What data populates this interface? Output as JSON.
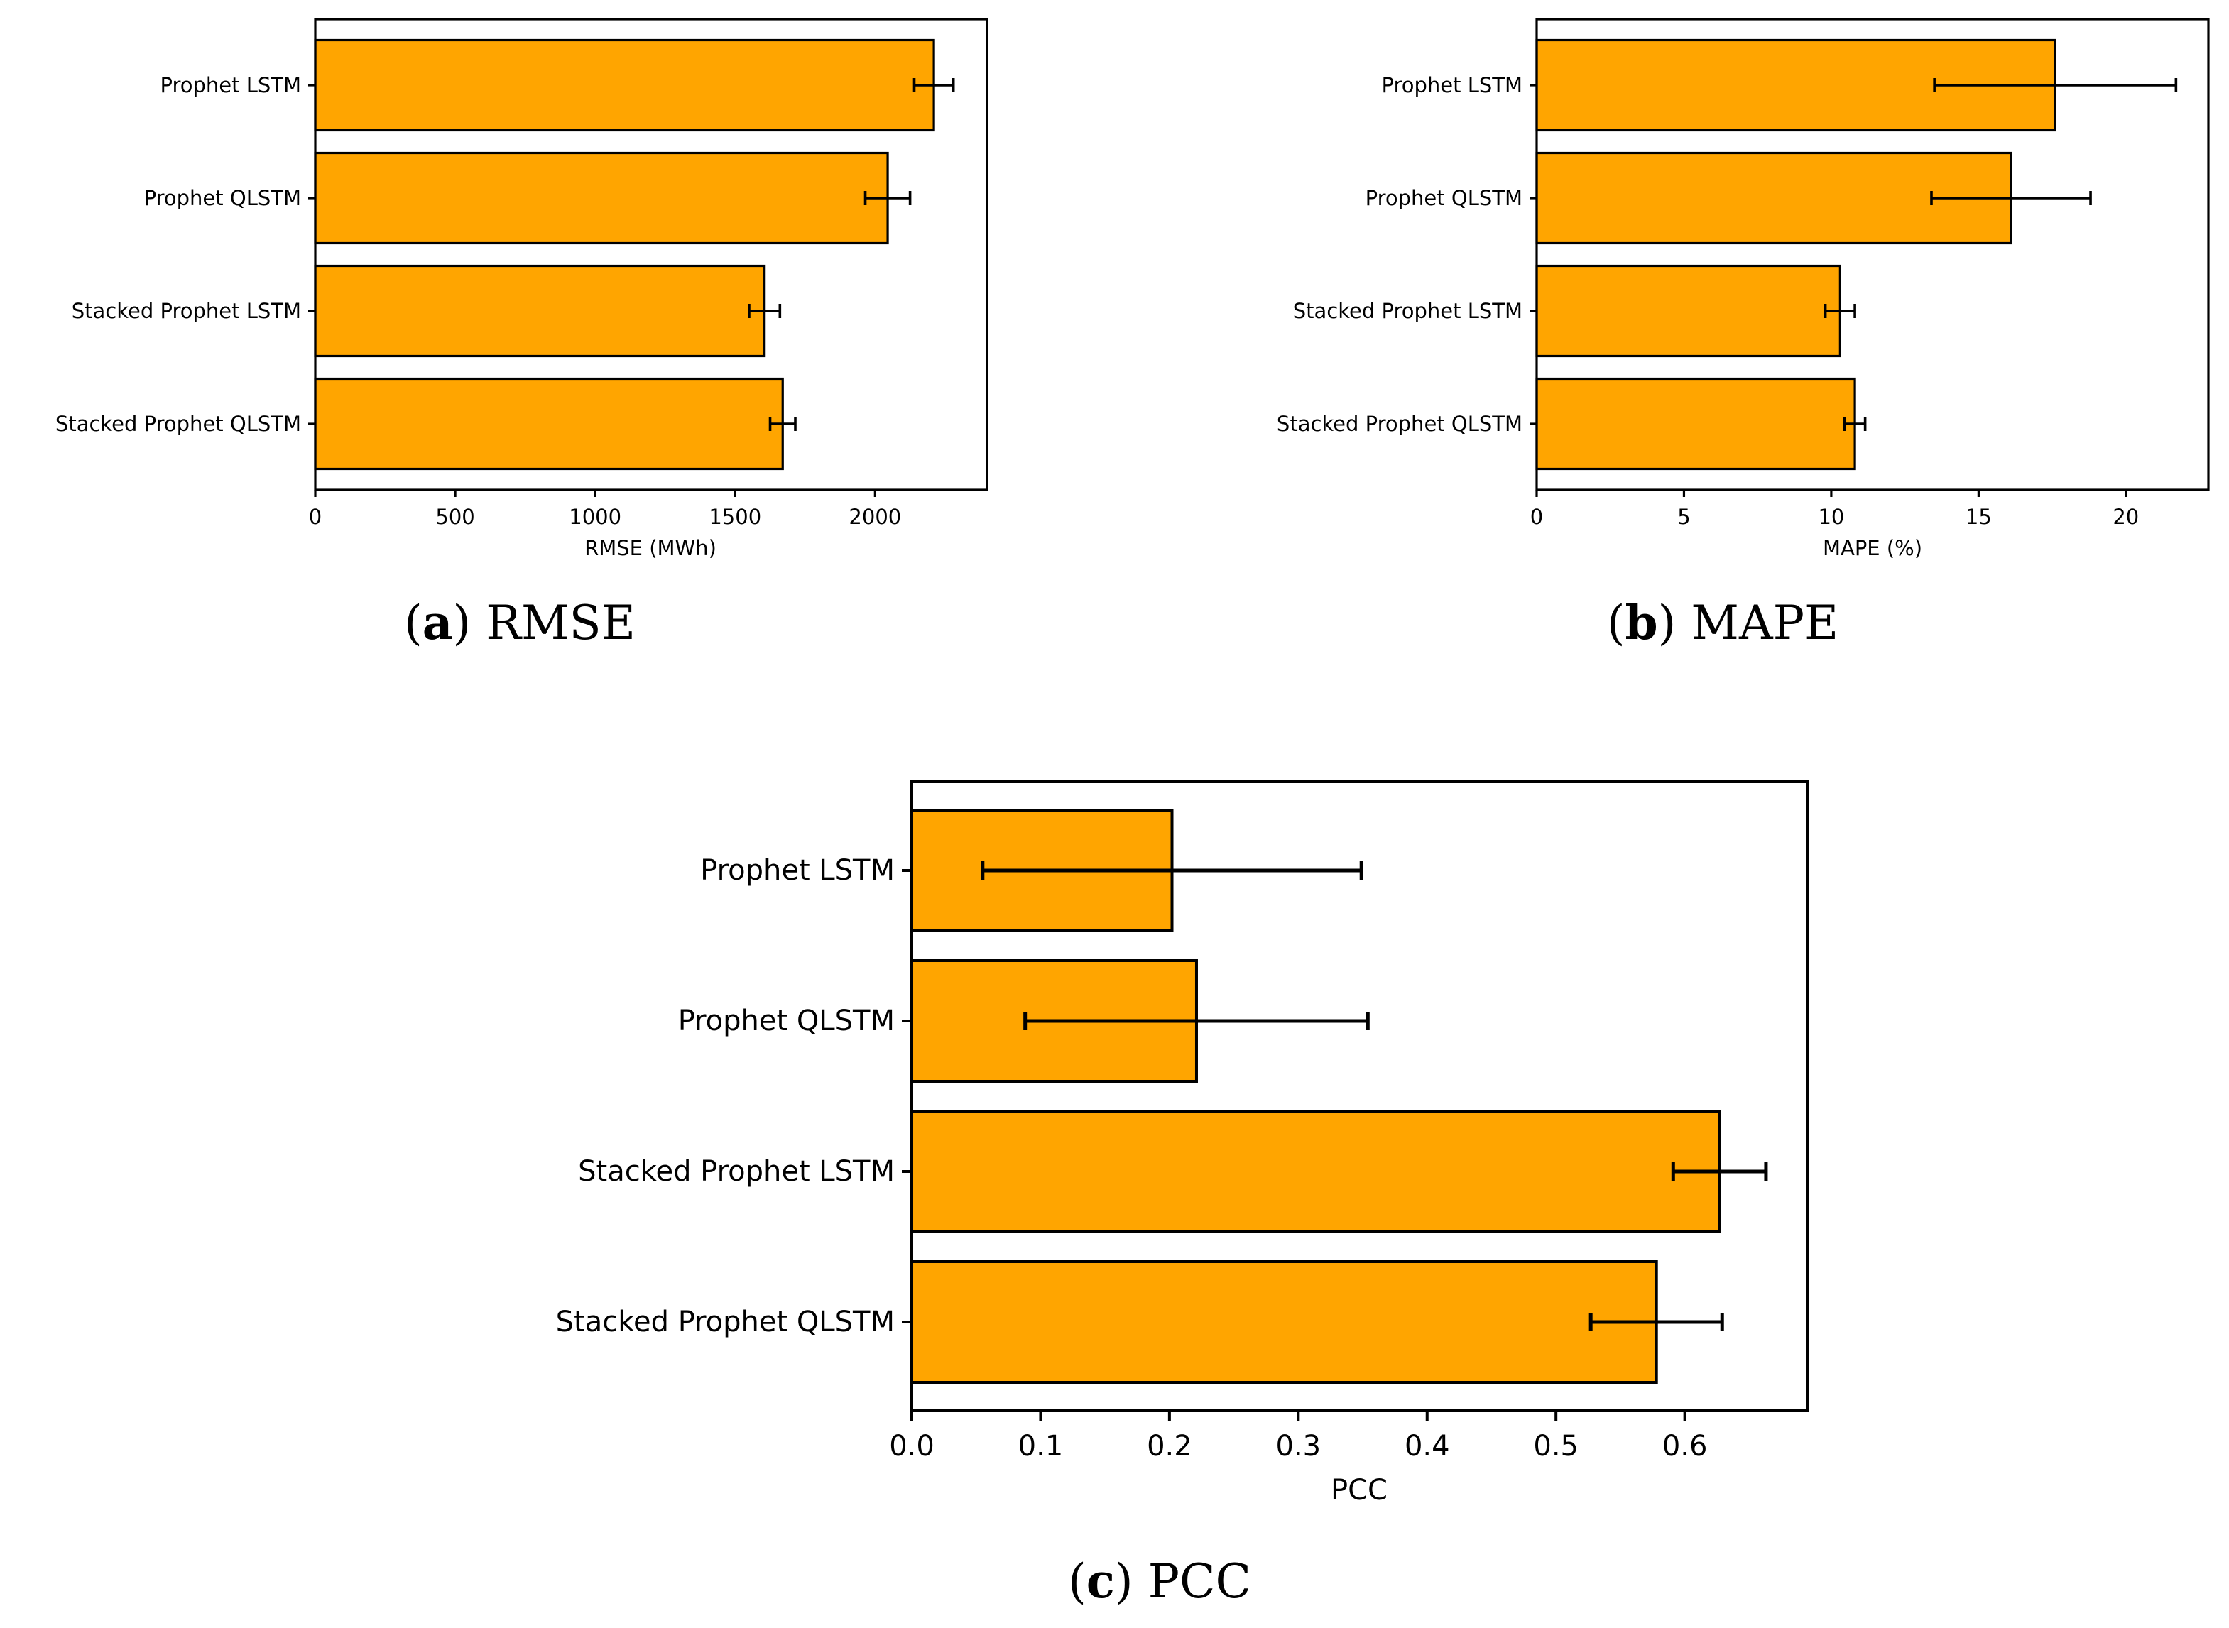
{
  "figure": {
    "panels": [
      {
        "caption_letter": "a",
        "caption_text": "RMSE"
      },
      {
        "caption_letter": "b",
        "caption_text": "MAPE"
      },
      {
        "caption_letter": "c",
        "caption_text": "PCC"
      }
    ]
  },
  "chart_data": [
    {
      "type": "bar",
      "orientation": "horizontal",
      "title": "",
      "xlabel": "RMSE (MWh)",
      "ylabel": "",
      "categories": [
        "Prophet LSTM",
        "Prophet QLSTM",
        "Stacked Prophet LSTM",
        "Stacked Prophet QLSTM"
      ],
      "values": [
        2210,
        2045,
        1605,
        1670
      ],
      "error": [
        70,
        80,
        55,
        45
      ],
      "xlim": [
        0,
        2400
      ],
      "xticks": [
        0,
        500,
        1000,
        1500,
        2000
      ],
      "xtick_labels": [
        "0",
        "500",
        "1000",
        "1500",
        "2000"
      ],
      "bar_color": "#ffa500",
      "grid": false
    },
    {
      "type": "bar",
      "orientation": "horizontal",
      "title": "",
      "xlabel": "MAPE (%)",
      "ylabel": "",
      "categories": [
        "Prophet LSTM",
        "Prophet QLSTM",
        "Stacked Prophet LSTM",
        "Stacked Prophet QLSTM"
      ],
      "values": [
        17.6,
        16.1,
        10.3,
        10.8
      ],
      "error": [
        4.1,
        2.7,
        0.5,
        0.35
      ],
      "xlim": [
        0,
        22.8
      ],
      "xticks": [
        0,
        5,
        10,
        15,
        20
      ],
      "xtick_labels": [
        "0",
        "5",
        "10",
        "15",
        "20"
      ],
      "bar_color": "#ffa500",
      "grid": false
    },
    {
      "type": "bar",
      "orientation": "horizontal",
      "title": "",
      "xlabel": "PCC",
      "ylabel": "",
      "categories": [
        "Prophet LSTM",
        "Prophet QLSTM",
        "Stacked Prophet LSTM",
        "Stacked Prophet QLSTM"
      ],
      "values": [
        0.202,
        0.221,
        0.627,
        0.578
      ],
      "error": [
        0.147,
        0.133,
        0.036,
        0.051
      ],
      "xlim": [
        0,
        0.695
      ],
      "xticks": [
        0.0,
        0.1,
        0.2,
        0.3,
        0.4,
        0.5,
        0.6
      ],
      "xtick_labels": [
        "0.0",
        "0.1",
        "0.2",
        "0.3",
        "0.4",
        "0.5",
        "0.6"
      ],
      "bar_color": "#ffa500",
      "grid": false
    }
  ]
}
